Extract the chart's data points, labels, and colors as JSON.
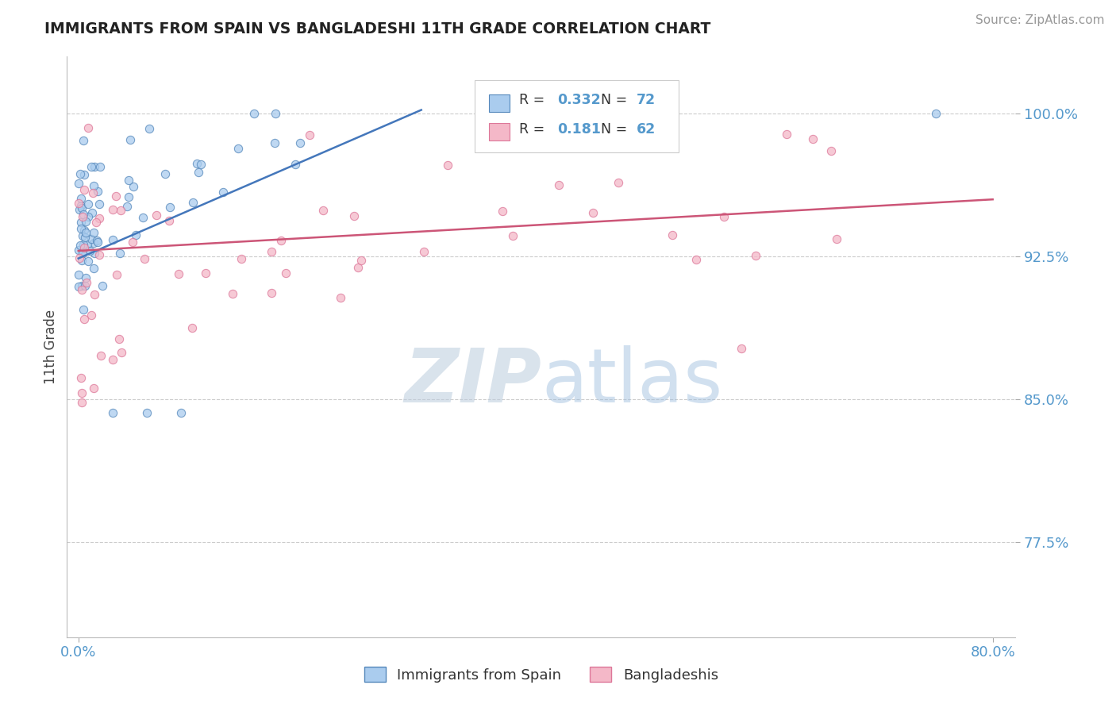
{
  "title": "IMMIGRANTS FROM SPAIN VS BANGLADESHI 11TH GRADE CORRELATION CHART",
  "source": "Source: ZipAtlas.com",
  "ylabel": "11th Grade",
  "ytick_vals": [
    0.775,
    0.85,
    0.925,
    1.0
  ],
  "ytick_labels": [
    "77.5%",
    "85.0%",
    "92.5%",
    "100.0%"
  ],
  "ylim": [
    0.725,
    1.03
  ],
  "xlim": [
    -0.01,
    0.82
  ],
  "watermark_zip": "ZIP",
  "watermark_atlas": "atlas",
  "legend_label_blue": "Immigrants from Spain",
  "legend_label_pink": "Bangladeshis",
  "blue_color": "#aaccee",
  "blue_edge": "#5588bb",
  "pink_color": "#f4b8c8",
  "pink_edge": "#dd7799",
  "trend_blue": "#4477bb",
  "trend_pink": "#cc5577",
  "blue_r": "0.332",
  "blue_n": "72",
  "pink_r": "0.181",
  "pink_n": "62",
  "accent_color": "#5599cc",
  "title_color": "#222222",
  "grid_color": "#cccccc",
  "source_color": "#999999"
}
